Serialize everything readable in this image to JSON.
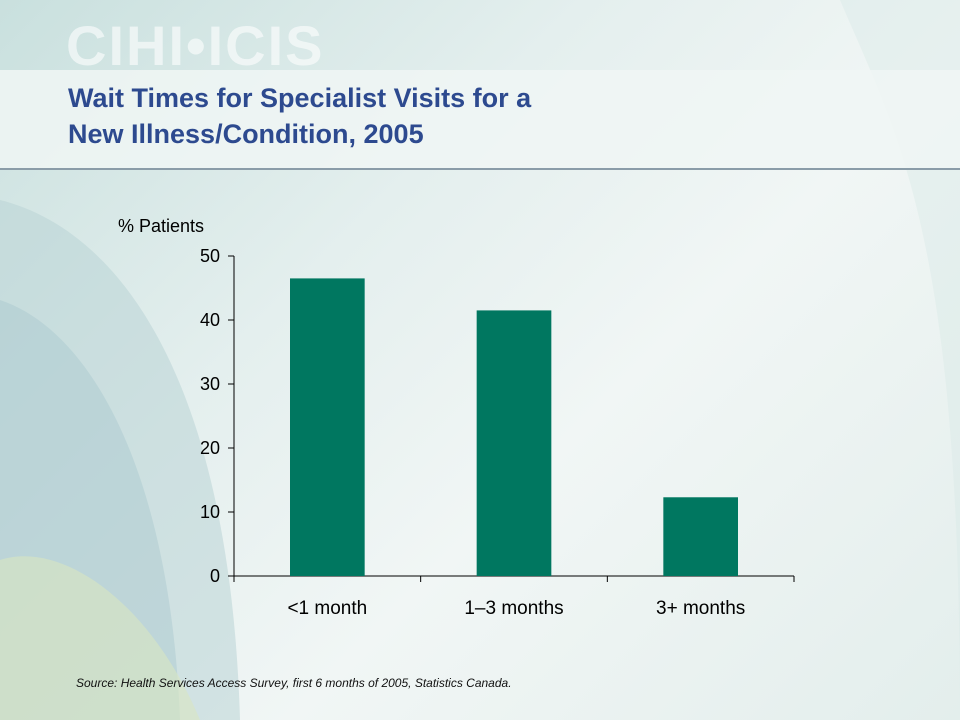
{
  "slide": {
    "logo_text": "CIHI•ICIS",
    "title_line1": "Wait Times for Specialist Visits for a",
    "title_line2": "New Illness/Condition, 2005",
    "source": "Source: Health Services Access Survey, first 6 months of 2005, Statistics Canada."
  },
  "colors": {
    "bar": "#007760",
    "title": "#2d4a8f",
    "axis": "#000000"
  },
  "chart_data": {
    "type": "bar",
    "title": "",
    "xlabel": "",
    "ylabel": "% Patients",
    "categories": [
      "<1 month",
      "1–3 months",
      "3+ months"
    ],
    "values": [
      46.5,
      41.5,
      12.3
    ],
    "ylim": [
      0,
      50
    ],
    "yticks": [
      0,
      10,
      20,
      30,
      40,
      50
    ],
    "grid": false,
    "legend": "none"
  }
}
